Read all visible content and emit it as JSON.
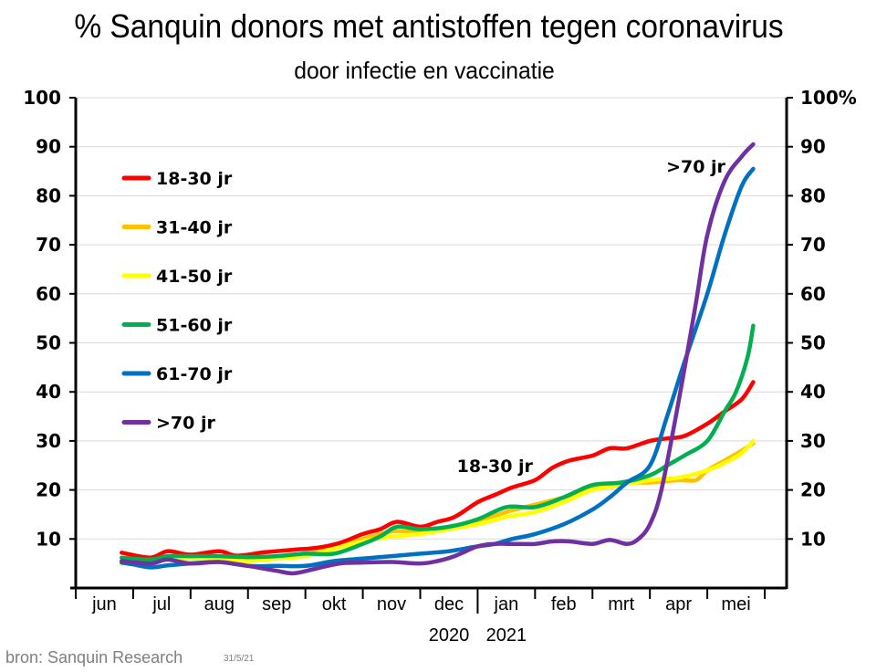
{
  "chart_data": {
    "type": "line",
    "title": "% Sanquin donors met antistoffen tegen coronavirus",
    "subtitle": "door infectie en vaccinatie",
    "xlabel": "",
    "ylabel": "",
    "ylim": [
      0,
      100
    ],
    "y_ticks": [
      10,
      20,
      30,
      40,
      50,
      60,
      70,
      80,
      90,
      100
    ],
    "y_tick_labels_left": [
      "10",
      "20",
      "30",
      "40",
      "50",
      "60",
      "70",
      "80",
      "90",
      "100"
    ],
    "y_tick_labels_right": [
      "10",
      "20",
      "30",
      "40",
      "50",
      "60",
      "70",
      "80",
      "90",
      "100%"
    ],
    "grid": true,
    "x_unit": "months since 1 June 2020",
    "xlim": [
      0,
      12
    ],
    "categories": [
      "jun",
      "jul",
      "aug",
      "sep",
      "okt",
      "nov",
      "dec",
      "jan",
      "feb",
      "mrt",
      "apr",
      "mei"
    ],
    "year_labels": [
      {
        "label": "2020",
        "under": "dec"
      },
      {
        "label": "2021",
        "under": "jan"
      }
    ],
    "legend_position": "top-left",
    "series": [
      {
        "name": "18-30 jr",
        "color": "#ff0000",
        "x": [
          0.8,
          1.3,
          1.6,
          2.0,
          2.5,
          2.8,
          3.3,
          3.8,
          4.2,
          4.6,
          5.0,
          5.3,
          5.6,
          6.0,
          6.3,
          6.6,
          7.0,
          7.3,
          7.6,
          8.0,
          8.3,
          8.6,
          9.0,
          9.3,
          9.6,
          10.0,
          10.3,
          10.6,
          11.0,
          11.3,
          11.6,
          11.8
        ],
        "y": [
          7.2,
          6.2,
          7.5,
          6.8,
          7.5,
          6.6,
          7.3,
          7.8,
          8.2,
          9.2,
          11.0,
          12.0,
          13.5,
          12.5,
          13.5,
          14.5,
          17.5,
          19.0,
          20.5,
          22.0,
          24.5,
          26.0,
          27.0,
          28.5,
          28.5,
          30.0,
          30.5,
          31.0,
          33.5,
          36.0,
          38.5,
          42.0
        ]
      },
      {
        "name": "31-40 jr",
        "color": "#ffc000",
        "x": [
          0.8,
          1.3,
          2.0,
          2.5,
          3.0,
          3.5,
          4.0,
          4.5,
          5.0,
          5.5,
          6.0,
          6.5,
          7.0,
          7.5,
          8.0,
          8.5,
          9.0,
          9.5,
          10.0,
          10.5,
          10.8,
          11.0,
          11.3,
          11.6,
          11.8
        ],
        "y": [
          5.5,
          5.8,
          6.2,
          6.0,
          6.0,
          6.3,
          7.0,
          8.0,
          10.0,
          11.5,
          11.5,
          12.0,
          13.5,
          15.5,
          17.0,
          18.5,
          20.5,
          21.5,
          21.5,
          22.0,
          22.0,
          24.0,
          26.0,
          28.0,
          29.5
        ]
      },
      {
        "name": "41-50 jr",
        "color": "#ffff00",
        "x": [
          0.8,
          1.3,
          2.0,
          2.5,
          3.0,
          3.5,
          4.0,
          4.5,
          5.0,
          5.5,
          6.0,
          6.5,
          7.0,
          7.5,
          8.0,
          8.5,
          9.0,
          9.5,
          10.0,
          10.5,
          11.0,
          11.3,
          11.6,
          11.8
        ],
        "y": [
          5.0,
          5.6,
          6.0,
          5.8,
          5.5,
          6.0,
          6.5,
          8.0,
          9.5,
          10.5,
          11.0,
          12.0,
          13.0,
          14.5,
          15.5,
          17.5,
          20.0,
          21.0,
          22.0,
          22.5,
          24.0,
          25.5,
          27.5,
          30.0
        ]
      },
      {
        "name": "51-60 jr",
        "color": "#00b050",
        "x": [
          0.8,
          1.3,
          1.6,
          2.0,
          2.5,
          3.0,
          3.5,
          4.0,
          4.5,
          5.0,
          5.3,
          5.6,
          6.0,
          6.5,
          7.0,
          7.5,
          8.0,
          8.5,
          9.0,
          9.5,
          10.0,
          10.3,
          10.6,
          11.0,
          11.3,
          11.5,
          11.7,
          11.8
        ],
        "y": [
          6.2,
          5.8,
          6.5,
          6.5,
          6.5,
          6.3,
          6.5,
          7.0,
          7.0,
          9.0,
          10.5,
          12.5,
          12.0,
          12.5,
          14.0,
          16.5,
          16.5,
          18.5,
          21.0,
          21.5,
          23.0,
          25.0,
          27.0,
          30.0,
          36.0,
          40.0,
          47.0,
          53.5
        ]
      },
      {
        "name": "61-70 jr",
        "color": "#0070c0",
        "x": [
          0.8,
          1.0,
          1.3,
          1.6,
          2.0,
          2.5,
          3.0,
          3.5,
          4.0,
          4.5,
          5.0,
          5.5,
          6.0,
          6.5,
          7.0,
          7.3,
          7.6,
          8.0,
          8.5,
          9.0,
          9.3,
          9.6,
          10.0,
          10.3,
          10.6,
          11.0,
          11.3,
          11.6,
          11.8
        ],
        "y": [
          5.2,
          4.8,
          4.2,
          4.6,
          5.0,
          5.3,
          4.5,
          4.5,
          4.5,
          5.5,
          6.0,
          6.5,
          7.0,
          7.5,
          8.5,
          9.0,
          10.0,
          11.0,
          13.0,
          16.0,
          18.5,
          21.5,
          25.0,
          35.0,
          46.0,
          60.0,
          72.0,
          82.0,
          85.5
        ]
      },
      {
        "name": ">70 jr",
        "color": "#7030a0",
        "x": [
          0.8,
          1.3,
          1.6,
          2.0,
          2.5,
          3.0,
          3.5,
          3.8,
          4.2,
          4.6,
          5.0,
          5.5,
          6.0,
          6.3,
          6.6,
          7.0,
          7.3,
          7.6,
          8.0,
          8.3,
          8.6,
          9.0,
          9.3,
          9.6,
          9.8,
          10.0,
          10.2,
          10.5,
          10.8,
          11.0,
          11.3,
          11.6,
          11.8
        ],
        "y": [
          5.5,
          5.0,
          5.8,
          5.0,
          5.3,
          4.5,
          3.5,
          3.0,
          4.0,
          5.0,
          5.2,
          5.3,
          5.0,
          5.5,
          6.5,
          8.5,
          9.0,
          9.0,
          9.0,
          9.5,
          9.5,
          9.0,
          9.8,
          9.0,
          10.0,
          13.0,
          20.0,
          38.0,
          58.0,
          72.0,
          83.0,
          88.0,
          90.5
        ]
      }
    ],
    "annotations": [
      {
        "text": "18-30 jr",
        "x": 7.3,
        "y": 25
      },
      {
        "text": ">70 jr",
        "x": 10.8,
        "y": 86
      }
    ]
  },
  "footer": {
    "source": "bron: Sanquin Research",
    "date": "31/5/21"
  }
}
